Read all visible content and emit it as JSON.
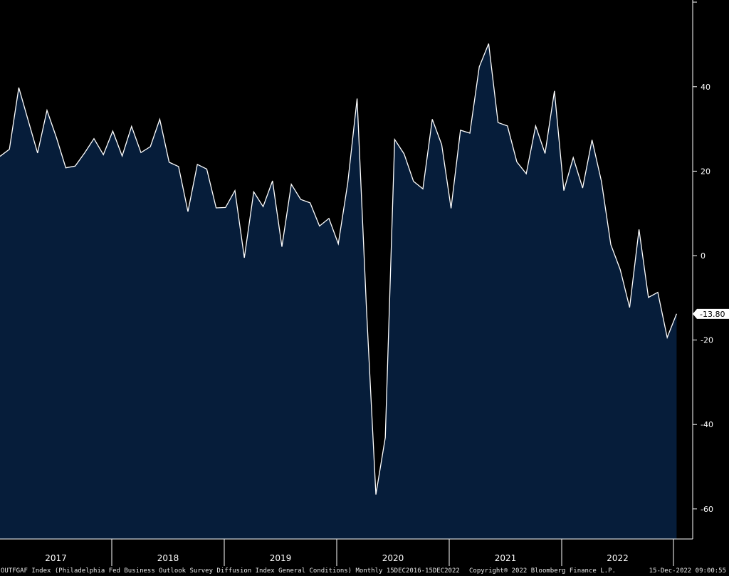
{
  "chart_data": {
    "type": "area",
    "title": "",
    "xlabel": "",
    "ylabel": "",
    "ylim": [
      -68,
      61
    ],
    "yticks": [
      40,
      20,
      0,
      -20,
      -40,
      -60
    ],
    "x_year_labels": [
      "2017",
      "2018",
      "2019",
      "2020",
      "2021",
      "2022"
    ],
    "last_value_label": "-13.80",
    "series": [
      {
        "x": [
          "2016-12",
          "2017-01",
          "2017-02",
          "2017-03",
          "2017-04",
          "2017-05",
          "2017-06",
          "2017-07",
          "2017-08",
          "2017-09",
          "2017-10",
          "2017-11",
          "2017-12",
          "2018-01",
          "2018-02",
          "2018-03",
          "2018-04",
          "2018-05",
          "2018-06",
          "2018-07",
          "2018-08",
          "2018-09",
          "2018-10",
          "2018-11",
          "2018-12",
          "2019-01",
          "2019-02",
          "2019-03",
          "2019-04",
          "2019-05",
          "2019-06",
          "2019-07",
          "2019-08",
          "2019-09",
          "2019-10",
          "2019-11",
          "2019-12",
          "2020-01",
          "2020-02",
          "2020-03",
          "2020-04",
          "2020-05",
          "2020-06",
          "2020-07",
          "2020-08",
          "2020-09",
          "2020-10",
          "2020-11",
          "2020-12",
          "2021-01",
          "2021-02",
          "2021-03",
          "2021-04",
          "2021-05",
          "2021-06",
          "2021-07",
          "2021-08",
          "2021-09",
          "2021-10",
          "2021-11",
          "2021-12",
          "2022-01",
          "2022-02",
          "2022-03",
          "2022-04",
          "2022-05",
          "2022-06",
          "2022-07",
          "2022-08",
          "2022-09",
          "2022-10",
          "2022-11",
          "2022-12"
        ],
        "values": [
          23.5,
          25.2,
          39.8,
          32.0,
          24.3,
          34.4,
          28.0,
          20.8,
          21.2,
          24.3,
          27.7,
          23.9,
          29.5,
          23.6,
          30.6,
          24.4,
          25.8,
          32.3,
          22.1,
          21.1,
          10.4,
          21.6,
          20.5,
          11.3,
          11.4,
          15.4,
          -0.5,
          15.1,
          11.6,
          17.7,
          2.1,
          16.9,
          13.3,
          12.5,
          7.0,
          8.8,
          2.8,
          17.1,
          37.2,
          -12.7,
          -56.6,
          -43.1,
          27.5,
          24.1,
          17.6,
          15.8,
          32.3,
          26.3,
          11.2,
          29.7,
          29.0,
          44.7,
          50.2,
          31.5,
          30.7,
          22.2,
          19.4,
          30.7,
          24.2,
          39.0,
          15.4,
          23.2,
          16.0,
          27.4,
          17.6,
          2.6,
          -3.3,
          -12.3,
          6.2,
          -9.9,
          -8.7,
          -19.4,
          -13.8
        ]
      }
    ],
    "grid": false,
    "legend": "none",
    "colors": {
      "background": "#000000",
      "fill": "#061d3a",
      "line": "#ffffff",
      "axis": "#ffffff",
      "text": "#ffffff"
    }
  },
  "footer": {
    "description": "OUTFGAF Index (Philadelphia Fed Business Outlook Survey Diffusion Index General Conditions) Monthly 15DEC2016-15DEC2022",
    "copyright": "Copyright® 2022 Bloomberg Finance L.P.",
    "timestamp": "15-Dec-2022 09:00:55"
  }
}
